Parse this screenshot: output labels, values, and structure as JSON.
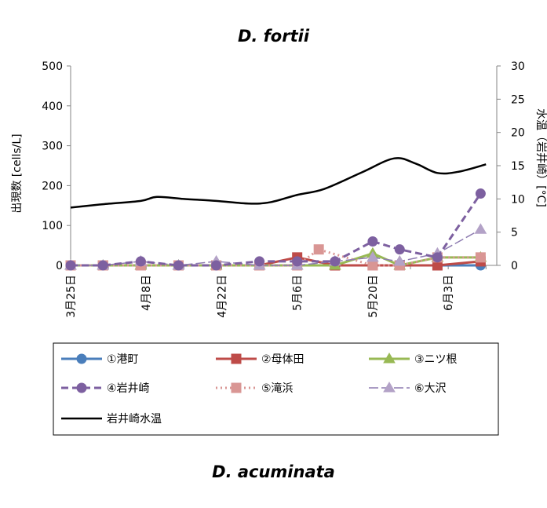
{
  "chart_data": {
    "type": "line",
    "title": "D. fortii",
    "bottom_title": "D. acuminata",
    "ylabel_left": "出現数 [cells/L]",
    "ylabel_right": "水温（岩井崎）[°C]",
    "y_left_lim": [
      0,
      500
    ],
    "y_left_ticks": [
      "0",
      "100",
      "200",
      "300",
      "400",
      "500"
    ],
    "y_right_lim": [
      0,
      30
    ],
    "y_right_ticks": [
      "0",
      "5",
      "10",
      "15",
      "20",
      "25",
      "30"
    ],
    "x_range": [
      "3月25日",
      "6月12日"
    ],
    "x_tick_labels": [
      "3月25日",
      "4月8日",
      "4月22日",
      "5月6日",
      "5月20日",
      "6月3日"
    ],
    "grid": false,
    "legend_placement": "bottom",
    "series": [
      {
        "name": "①港町",
        "color": "#4a7ebb",
        "dash": "solid",
        "marker": "circle",
        "axis": "left",
        "points": [
          [
            "3月25日",
            0
          ],
          [
            "3月31日",
            0
          ],
          [
            "4月7日",
            0
          ],
          [
            "4月14日",
            0
          ],
          [
            "4月21日",
            0
          ],
          [
            "4月29日",
            0
          ],
          [
            "5月6日",
            0
          ],
          [
            "5月13日",
            0
          ],
          [
            "5月20日",
            0
          ],
          [
            "5月25日",
            0
          ],
          [
            "6月1日",
            0
          ],
          [
            "6月9日",
            0
          ]
        ]
      },
      {
        "name": "②母体田",
        "color": "#be4b48",
        "dash": "solid",
        "marker": "square",
        "axis": "left",
        "points": [
          [
            "3月25日",
            0
          ],
          [
            "3月31日",
            0
          ],
          [
            "4月7日",
            0
          ],
          [
            "4月14日",
            0
          ],
          [
            "4月21日",
            0
          ],
          [
            "4月29日",
            0
          ],
          [
            "5月6日",
            20
          ],
          [
            "5月13日",
            0
          ],
          [
            "5月20日",
            0
          ],
          [
            "5月25日",
            0
          ],
          [
            "6月1日",
            0
          ],
          [
            "6月9日",
            10
          ]
        ]
      },
      {
        "name": "③ニツ根",
        "color": "#98b954",
        "dash": "solid",
        "marker": "triangle",
        "axis": "left",
        "points": [
          [
            "3月25日",
            0
          ],
          [
            "3月31日",
            0
          ],
          [
            "4月7日",
            0
          ],
          [
            "4月14日",
            0
          ],
          [
            "4月21日",
            0
          ],
          [
            "4月29日",
            0
          ],
          [
            "5月6日",
            0
          ],
          [
            "5月13日",
            0
          ],
          [
            "5月20日",
            30
          ],
          [
            "5月25日",
            0
          ],
          [
            "6月1日",
            20
          ],
          [
            "6月9日",
            20
          ]
        ]
      },
      {
        "name": "④岩井崎",
        "color": "#7d60a0",
        "dash": "dash",
        "marker": "circle",
        "axis": "left",
        "points": [
          [
            "3月25日",
            0
          ],
          [
            "3月31日",
            0
          ],
          [
            "4月7日",
            10
          ],
          [
            "4月14日",
            0
          ],
          [
            "4月21日",
            0
          ],
          [
            "4月29日",
            10
          ],
          [
            "5月6日",
            10
          ],
          [
            "5月13日",
            10
          ],
          [
            "5月20日",
            60
          ],
          [
            "5月25日",
            40
          ],
          [
            "6月1日",
            20
          ],
          [
            "6月9日",
            180
          ]
        ]
      },
      {
        "name": "⑤滝浜",
        "color": "#d99694",
        "dash": "dot",
        "marker": "square",
        "axis": "left",
        "points": [
          [
            "3月25日",
            0
          ],
          [
            "3月31日",
            0
          ],
          [
            "4月7日",
            0
          ],
          [
            "4月14日",
            0
          ],
          [
            "4月21日",
            0
          ],
          [
            "4月29日",
            0
          ],
          [
            "5月6日",
            0
          ],
          [
            "5月10日",
            40
          ],
          [
            "5月20日",
            0
          ],
          [
            "5月25日",
            0
          ],
          [
            "6月1日",
            20
          ],
          [
            "6月9日",
            20
          ]
        ]
      },
      {
        "name": "⑥大沢",
        "color": "#b3a2c7",
        "dash": "longdash",
        "marker": "triangle",
        "axis": "left",
        "points": [
          [
            "3月25日",
            0
          ],
          [
            "3月31日",
            0
          ],
          [
            "4月7日",
            10
          ],
          [
            "4月14日",
            0
          ],
          [
            "4月21日",
            10
          ],
          [
            "4月29日",
            0
          ],
          [
            "5月6日",
            0
          ],
          [
            "5月13日",
            10
          ],
          [
            "5月20日",
            20
          ],
          [
            "5月25日",
            10
          ],
          [
            "6月1日",
            30
          ],
          [
            "6月9日",
            90
          ]
        ]
      },
      {
        "name": "岩井崎水温",
        "color": "#000000",
        "dash": "solid",
        "marker": "none",
        "axis": "right",
        "points": [
          [
            "3月25日",
            8.7
          ],
          [
            "3月31日",
            9.2
          ],
          [
            "4月7日",
            9.7
          ],
          [
            "4月10日",
            10.3
          ],
          [
            "4月15日",
            10.0
          ],
          [
            "4月21日",
            9.7
          ],
          [
            "4月27日",
            9.3
          ],
          [
            "5月1日",
            9.5
          ],
          [
            "5月6日",
            10.6
          ],
          [
            "5月11日",
            11.5
          ],
          [
            "5月18日",
            14.0
          ],
          [
            "5月24日",
            16.1
          ],
          [
            "5月28日",
            15.3
          ],
          [
            "6月1日",
            13.9
          ],
          [
            "6月5日",
            14.1
          ],
          [
            "6月10日",
            15.2
          ]
        ]
      }
    ]
  }
}
